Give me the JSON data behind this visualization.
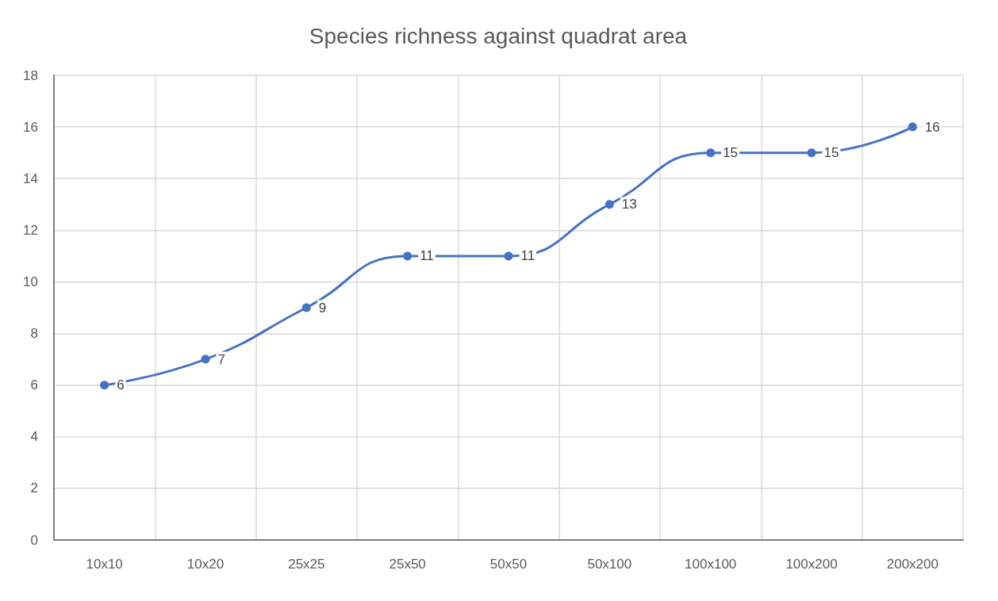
{
  "chart_data": {
    "type": "line",
    "title": "Species richness against quadrat area",
    "categories": [
      "10x10",
      "10x20",
      "25x25",
      "25x50",
      "50x50",
      "50x100",
      "100x100",
      "100x200",
      "200x200"
    ],
    "series": [
      {
        "color": "#4472c4",
        "values": [
          6,
          7,
          9,
          11,
          11,
          13,
          15,
          15,
          16
        ]
      }
    ],
    "ylim": [
      0,
      18
    ],
    "yticks": [
      0,
      2,
      4,
      6,
      8,
      10,
      12,
      14,
      16,
      18
    ],
    "grid": true,
    "marker": "circle",
    "line_style": "solid",
    "data_labels": true
  }
}
